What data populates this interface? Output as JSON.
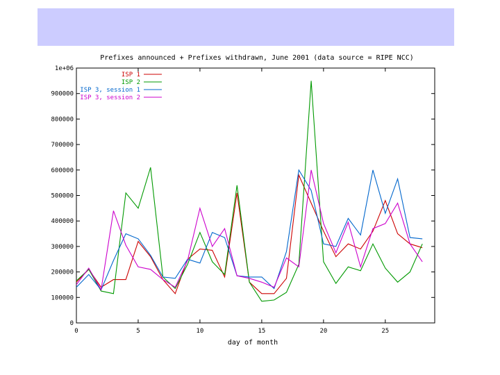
{
  "chart_data": {
    "type": "line",
    "title": "Prefixes announced + Prefixes withdrawn, June 2001 (data source = RIPE NCC)",
    "xlabel": "day of month",
    "ylabel": "",
    "xlim": [
      0,
      29
    ],
    "ylim": [
      0,
      1000000
    ],
    "x_ticks": [
      0,
      5,
      10,
      15,
      20,
      25
    ],
    "y_ticks": [
      0,
      100000,
      200000,
      300000,
      400000,
      500000,
      600000,
      700000,
      800000,
      900000,
      1000000
    ],
    "y_tick_labels": [
      "0",
      "100000",
      "200000",
      "300000",
      "400000",
      "500000",
      "600000",
      "700000",
      "800000",
      "900000",
      "1e+06"
    ],
    "grid": false,
    "legend_position": "top-left",
    "x": [
      0,
      1,
      2,
      3,
      4,
      5,
      6,
      7,
      8,
      9,
      10,
      11,
      12,
      13,
      14,
      15,
      16,
      17,
      18,
      19,
      20,
      21,
      22,
      23,
      24,
      25,
      26,
      27,
      28
    ],
    "series": [
      {
        "name": "ISP 1",
        "color": "#cc0000",
        "values": [
          160000,
          210000,
          140000,
          170000,
          170000,
          320000,
          260000,
          170000,
          115000,
          250000,
          290000,
          285000,
          180000,
          510000,
          160000,
          115000,
          115000,
          175000,
          580000,
          470000,
          360000,
          260000,
          310000,
          290000,
          360000,
          480000,
          350000,
          310000,
          295000
        ]
      },
      {
        "name": "ISP 2",
        "color": "#009900",
        "values": [
          165000,
          210000,
          125000,
          115000,
          510000,
          450000,
          610000,
          180000,
          135000,
          230000,
          355000,
          240000,
          190000,
          540000,
          160000,
          85000,
          90000,
          120000,
          230000,
          950000,
          240000,
          155000,
          220000,
          205000,
          310000,
          215000,
          160000,
          200000,
          310000
        ]
      },
      {
        "name": "ISP 3, session 1",
        "color": "#0066cc",
        "values": [
          140000,
          190000,
          130000,
          245000,
          350000,
          330000,
          265000,
          180000,
          175000,
          250000,
          235000,
          355000,
          335000,
          185000,
          180000,
          180000,
          135000,
          280000,
          600000,
          520000,
          310000,
          300000,
          410000,
          345000,
          600000,
          430000,
          565000,
          335000,
          330000
        ]
      },
      {
        "name": "ISP 3, session 2",
        "color": "#cc00cc",
        "values": [
          150000,
          215000,
          130000,
          440000,
          305000,
          220000,
          210000,
          170000,
          140000,
          245000,
          450000,
          300000,
          370000,
          185000,
          175000,
          160000,
          140000,
          255000,
          220000,
          600000,
          390000,
          275000,
          395000,
          220000,
          370000,
          390000,
          470000,
          310000,
          240000
        ]
      }
    ]
  }
}
